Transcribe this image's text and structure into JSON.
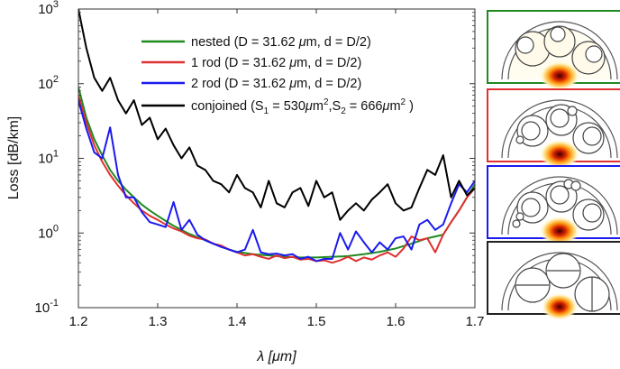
{
  "chart_data": {
    "type": "line",
    "xlabel": "λ [μm]",
    "ylabel": "Loss [dB/km]",
    "xlim": [
      1.2,
      1.7
    ],
    "ylim": [
      0.1,
      1000
    ],
    "yscale": "log",
    "xticks": [
      "1.2",
      "1.3",
      "1.4",
      "1.5",
      "1.6",
      "1.7"
    ],
    "yticks": [
      {
        "base": "10",
        "exp": "-1"
      },
      {
        "base": "10",
        "exp": "0"
      },
      {
        "base": "10",
        "exp": "1"
      },
      {
        "base": "10",
        "exp": "2"
      },
      {
        "base": "10",
        "exp": "3"
      }
    ],
    "legend_position": "top-right",
    "series": [
      {
        "name": "nested (D = 31.62 μm, d = D/2)",
        "legend": {
          "text": "nested (D = 31.62 ",
          "mu": "μ",
          "rest": "m, d = D/2)"
        },
        "color": "#1f8a1f",
        "x": [
          1.2,
          1.21,
          1.22,
          1.23,
          1.24,
          1.25,
          1.26,
          1.27,
          1.28,
          1.29,
          1.3,
          1.31,
          1.32,
          1.33,
          1.34,
          1.35,
          1.36,
          1.37,
          1.38,
          1.39,
          1.4,
          1.42,
          1.44,
          1.46,
          1.48,
          1.5,
          1.52,
          1.54,
          1.56,
          1.58,
          1.6,
          1.62,
          1.64,
          1.66,
          1.67,
          1.68,
          1.69,
          1.7
        ],
        "y": [
          90,
          35,
          18,
          11,
          7,
          5,
          3.8,
          3,
          2.4,
          2,
          1.7,
          1.45,
          1.25,
          1.1,
          0.97,
          0.88,
          0.8,
          0.72,
          0.66,
          0.6,
          0.56,
          0.52,
          0.5,
          0.48,
          0.47,
          0.47,
          0.48,
          0.49,
          0.52,
          0.56,
          0.62,
          0.72,
          0.85,
          0.95,
          1.4,
          2,
          3,
          4.5
        ]
      },
      {
        "name": "1 rod (D = 31.62 μm, d = D/2)",
        "legend": {
          "text": "1 rod (D = 31.62 ",
          "mu": "μ",
          "rest": "m, d = D/2)"
        },
        "color": "#e03030",
        "x": [
          1.2,
          1.21,
          1.22,
          1.23,
          1.24,
          1.25,
          1.26,
          1.27,
          1.28,
          1.29,
          1.3,
          1.31,
          1.32,
          1.33,
          1.34,
          1.35,
          1.36,
          1.37,
          1.38,
          1.39,
          1.4,
          1.41,
          1.42,
          1.43,
          1.44,
          1.45,
          1.46,
          1.47,
          1.48,
          1.49,
          1.5,
          1.51,
          1.52,
          1.53,
          1.54,
          1.55,
          1.56,
          1.57,
          1.58,
          1.59,
          1.6,
          1.61,
          1.62,
          1.63,
          1.64,
          1.65,
          1.66,
          1.67,
          1.68,
          1.69,
          1.7
        ],
        "y": [
          70,
          30,
          15,
          9,
          6,
          4.3,
          3.2,
          2.5,
          2,
          1.7,
          1.5,
          1.3,
          1.15,
          1.05,
          0.92,
          0.85,
          0.82,
          0.72,
          0.68,
          0.6,
          0.55,
          0.5,
          0.52,
          0.48,
          0.45,
          0.5,
          0.46,
          0.48,
          0.44,
          0.45,
          0.42,
          0.43,
          0.4,
          0.43,
          0.48,
          0.42,
          0.47,
          0.44,
          0.5,
          0.55,
          0.48,
          0.62,
          0.9,
          0.8,
          0.85,
          0.55,
          0.95,
          1.4,
          2,
          3,
          4
        ]
      },
      {
        "name": "2 rod (D = 31.62 μm, d = D/2)",
        "legend": {
          "text": "2 rod (D = 31.62 ",
          "mu": "μ",
          "rest": "m, d = D/2)"
        },
        "color": "#1a1aee",
        "x": [
          1.2,
          1.21,
          1.22,
          1.23,
          1.24,
          1.25,
          1.26,
          1.27,
          1.28,
          1.29,
          1.3,
          1.31,
          1.32,
          1.33,
          1.34,
          1.35,
          1.36,
          1.37,
          1.38,
          1.39,
          1.4,
          1.41,
          1.42,
          1.43,
          1.44,
          1.45,
          1.46,
          1.47,
          1.48,
          1.49,
          1.5,
          1.51,
          1.52,
          1.53,
          1.54,
          1.55,
          1.56,
          1.57,
          1.58,
          1.59,
          1.6,
          1.61,
          1.62,
          1.63,
          1.64,
          1.65,
          1.66,
          1.67,
          1.68,
          1.69,
          1.7
        ],
        "y": [
          60,
          25,
          12,
          10,
          26,
          6,
          3,
          3,
          1.9,
          1.4,
          1.3,
          1.2,
          2.6,
          1.1,
          1.5,
          0.95,
          0.8,
          0.72,
          0.65,
          0.6,
          0.55,
          0.6,
          1.1,
          0.55,
          0.52,
          0.53,
          0.5,
          0.52,
          0.45,
          0.48,
          0.42,
          0.45,
          0.45,
          1.0,
          0.6,
          1.05,
          0.75,
          0.55,
          0.75,
          0.6,
          0.85,
          0.9,
          0.6,
          1.3,
          1.5,
          1.1,
          1.3,
          2.5,
          4.5,
          3.5,
          5
        ]
      },
      {
        "name": "conjoined",
        "legend": {
          "text": "conjoined (S",
          "s1sub": "1",
          "s1eq": " = 530",
          "mu": "μ",
          "s1unit": "m",
          "sup": "2",
          "sep": ",S",
          "s2sub": "2",
          "s2eq": " = 666",
          "s2unit": "m",
          "close": " )"
        },
        "color": "#000000",
        "x": [
          1.2,
          1.21,
          1.22,
          1.23,
          1.24,
          1.25,
          1.26,
          1.27,
          1.28,
          1.29,
          1.3,
          1.31,
          1.32,
          1.33,
          1.34,
          1.35,
          1.36,
          1.37,
          1.38,
          1.39,
          1.4,
          1.41,
          1.42,
          1.43,
          1.44,
          1.45,
          1.46,
          1.47,
          1.48,
          1.49,
          1.5,
          1.51,
          1.52,
          1.53,
          1.54,
          1.55,
          1.56,
          1.57,
          1.58,
          1.59,
          1.6,
          1.61,
          1.62,
          1.63,
          1.64,
          1.65,
          1.66,
          1.67,
          1.68,
          1.69,
          1.7
        ],
        "y": [
          1000,
          300,
          120,
          80,
          120,
          60,
          40,
          60,
          28,
          35,
          18,
          25,
          15,
          10,
          14,
          8,
          7,
          5,
          4.5,
          3.5,
          6,
          4,
          3.5,
          2.2,
          5,
          2.5,
          2.2,
          3.5,
          4,
          2.3,
          5,
          3,
          3.5,
          1.5,
          2,
          2.5,
          2,
          2.8,
          3.5,
          4.5,
          2.5,
          2.0,
          2.2,
          4,
          7,
          6,
          11,
          3,
          5,
          3.2,
          4
        ]
      }
    ]
  },
  "insets": [
    {
      "name": "nested",
      "border_color": "#1f8a1f"
    },
    {
      "name": "1-rod",
      "border_color": "#e03030"
    },
    {
      "name": "2-rod",
      "border_color": "#1a1aee"
    },
    {
      "name": "conjoined",
      "border_color": "#222222"
    }
  ]
}
